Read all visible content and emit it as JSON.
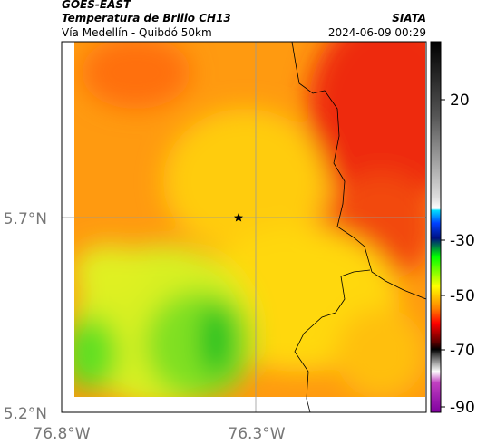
{
  "header": {
    "title": "GOES-EAST",
    "subtitle": "Temperatura de Brillo CH13",
    "location": "Vía Medellín - Quibdó 50km",
    "source": "SIATA",
    "datetime": "2024-06-09 00:29"
  },
  "axes": {
    "y_ticks": [
      "5.7°N",
      "5.2°N"
    ],
    "x_ticks": [
      "76.8°W",
      "76.3°W"
    ]
  },
  "colorbar": {
    "ticks": [
      20,
      -30,
      -50,
      -70,
      -90
    ]
  }
}
